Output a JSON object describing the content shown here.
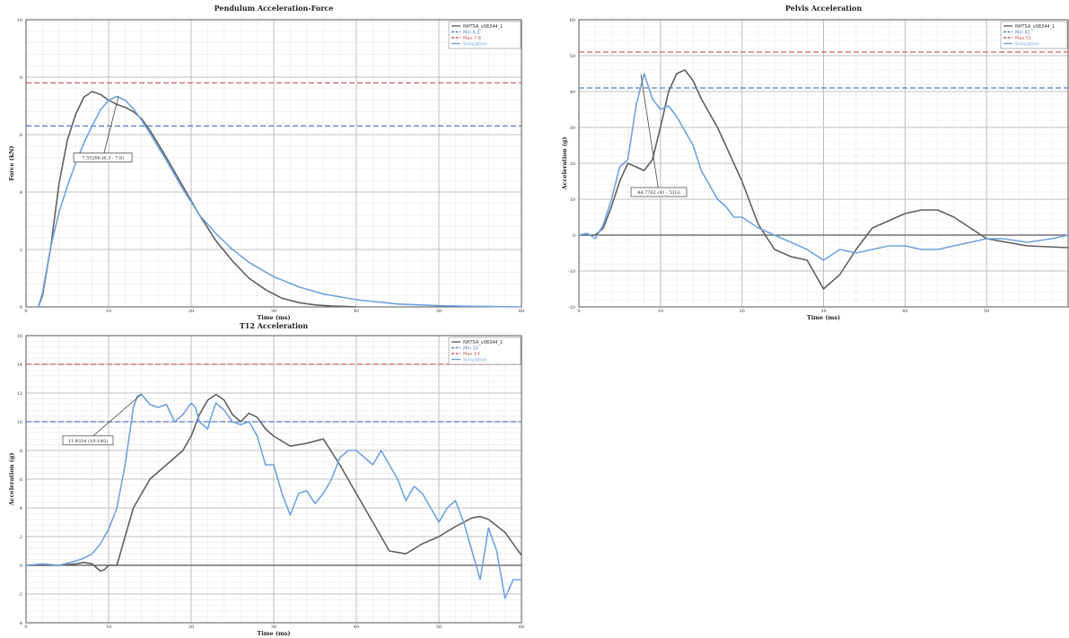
{
  "colors": {
    "nhtsa": "#606060",
    "min": "#4f7fc0",
    "max": "#d06060",
    "sim": "#6fa3e0"
  },
  "chart_data": [
    {
      "type": "line",
      "title": "Pendulum Acceleration-Force",
      "xlabel": "Time (ms)",
      "ylabel": "Force (kN)",
      "xlim": [
        0,
        60
      ],
      "ylim": [
        0,
        10
      ],
      "xticks": [
        0,
        10,
        20,
        30,
        40,
        50,
        60
      ],
      "yticks": [
        0,
        2,
        4,
        6,
        8,
        10
      ],
      "x_tick_labels": [
        "0",
        "10",
        "20",
        "30",
        "40",
        "50",
        "60"
      ],
      "y_tick_labels": [
        "0",
        "2",
        "4",
        "6",
        "8",
        "10"
      ],
      "grid": true,
      "legend_position": "top-right",
      "annotation": {
        "text": "7.33266 (6.3 - 7.8)",
        "point": [
          11.2,
          7.33
        ],
        "anchor": [
          9.3,
          5.2
        ]
      },
      "series": [
        {
          "name": "NHTSA_v08344_1",
          "style": "solid",
          "x": [
            1.5,
            2,
            3,
            4,
            5,
            6,
            7,
            8,
            9,
            10,
            11,
            12,
            13,
            14,
            15,
            17,
            19,
            21,
            23,
            25,
            27,
            29,
            31,
            33,
            35,
            37,
            40
          ],
          "y": [
            0,
            0.4,
            2.1,
            4.3,
            5.8,
            6.7,
            7.3,
            7.5,
            7.4,
            7.2,
            7.05,
            6.95,
            6.8,
            6.55,
            6.15,
            5.2,
            4.2,
            3.2,
            2.3,
            1.6,
            1.0,
            0.6,
            0.3,
            0.15,
            0.07,
            0.03,
            0.0
          ]
        },
        {
          "name": "Min 6.3",
          "style": "dashed",
          "x": [
            0,
            60
          ],
          "y": [
            6.3,
            6.3
          ]
        },
        {
          "name": "Max 7.8",
          "style": "dashed",
          "x": [
            0,
            60
          ],
          "y": [
            7.8,
            7.8
          ]
        },
        {
          "name": "Simulation",
          "style": "solid",
          "x": [
            1.5,
            2,
            3,
            4,
            5,
            6,
            7,
            8,
            9,
            10,
            11,
            12,
            13,
            14,
            15,
            17,
            19,
            21,
            23,
            25,
            27,
            30,
            33,
            36,
            40,
            45,
            50,
            55,
            60
          ],
          "y": [
            0,
            0.5,
            2.1,
            3.3,
            4.2,
            5.0,
            5.7,
            6.3,
            6.85,
            7.2,
            7.33,
            7.2,
            6.9,
            6.5,
            6.05,
            5.1,
            4.1,
            3.2,
            2.55,
            2.0,
            1.55,
            1.05,
            0.7,
            0.45,
            0.25,
            0.1,
            0.04,
            0.02,
            0.0
          ]
        }
      ]
    },
    {
      "type": "line",
      "title": "Pelvis Acceleration",
      "xlabel": "Time (ms)",
      "ylabel": "Acceleration (g)",
      "xlim": [
        0,
        60
      ],
      "ylim": [
        -20,
        60
      ],
      "xticks": [
        0,
        10,
        20,
        30,
        40,
        50
      ],
      "yticks": [
        -20,
        -10,
        0,
        10,
        20,
        30,
        40,
        50,
        60
      ],
      "x_tick_labels": [
        "0",
        "10",
        "20",
        "30",
        "40",
        "50"
      ],
      "y_tick_labels": [
        "-20",
        "-10",
        "0",
        "10",
        "20",
        "30",
        "40",
        "50",
        "60"
      ],
      "grid": true,
      "legend_position": "top-right",
      "annotation": {
        "text": "44.7762 (41 - 51G)",
        "point": [
          7.6,
          44.8
        ],
        "anchor": [
          9.8,
          12
        ]
      },
      "series": [
        {
          "name": "NHTSA_v08344_1",
          "style": "solid",
          "x": [
            0,
            2,
            3,
            4,
            5,
            6,
            7,
            8,
            9,
            10,
            11,
            12,
            13,
            14,
            15,
            16,
            17,
            18,
            20,
            22,
            24,
            26,
            28,
            30,
            32,
            34,
            36,
            38,
            40,
            42,
            44,
            46,
            48,
            50,
            55,
            60
          ],
          "y": [
            0,
            0,
            2,
            8,
            15,
            20,
            19,
            18,
            21,
            30,
            40,
            45,
            46,
            43,
            38,
            34,
            30,
            25,
            15,
            3,
            -4,
            -6,
            -7,
            -15,
            -11,
            -4,
            2,
            4,
            6,
            7,
            7,
            5,
            2,
            -1,
            -3,
            -3.5
          ]
        },
        {
          "name": "Min 41",
          "style": "dashed",
          "x": [
            0,
            60
          ],
          "y": [
            41,
            41
          ]
        },
        {
          "name": "Max 51",
          "style": "dashed",
          "x": [
            0,
            60
          ],
          "y": [
            51,
            51
          ]
        },
        {
          "name": "Simulation",
          "style": "solid",
          "x": [
            0,
            1,
            2,
            3,
            4,
            5,
            6,
            7,
            8,
            9,
            10,
            11,
            12,
            13,
            14,
            15,
            16,
            17,
            18,
            19,
            20,
            22,
            24,
            26,
            28,
            30,
            32,
            34,
            36,
            38,
            40,
            42,
            44,
            46,
            48,
            50,
            52,
            55,
            58,
            60
          ],
          "y": [
            0,
            0.5,
            -1,
            3,
            10,
            19,
            21,
            36,
            45,
            38,
            35,
            36,
            33,
            29,
            25,
            18,
            14,
            10,
            8,
            5,
            5,
            2,
            0,
            -2,
            -4,
            -7,
            -4,
            -5,
            -4,
            -3,
            -3,
            -4,
            -4,
            -3,
            -2,
            -1,
            -1,
            -2,
            -1,
            0
          ]
        }
      ]
    },
    {
      "type": "line",
      "title": "T12 Acceleration",
      "xlabel": "Time (ms)",
      "ylabel": "Acceleration (g)",
      "xlim": [
        0,
        60
      ],
      "ylim": [
        -4,
        16
      ],
      "xticks": [
        0,
        10,
        20,
        30,
        40,
        50,
        60
      ],
      "yticks": [
        -4,
        -2,
        0,
        2,
        4,
        6,
        8,
        10,
        12,
        14,
        16
      ],
      "x_tick_labels": [
        "0",
        "10",
        "20",
        "30",
        "40",
        "50",
        "60"
      ],
      "y_tick_labels": [
        "-4",
        "-2",
        "0",
        "2",
        "4",
        "6",
        "8",
        "10",
        "12",
        "14",
        "16"
      ],
      "grid": true,
      "legend_position": "top-right",
      "annotation": {
        "text": "11.9334 (10-14G)",
        "point": [
          14,
          11.93
        ],
        "anchor": [
          7.5,
          8.7
        ]
      },
      "series": [
        {
          "name": "NHTSA_v08344_1",
          "style": "solid",
          "x": [
            0,
            2,
            4,
            6,
            7,
            8,
            9,
            9.5,
            10,
            11,
            12,
            13,
            14,
            15,
            16,
            17,
            18,
            19,
            20,
            21,
            22,
            23,
            24,
            25,
            26,
            27,
            28,
            29,
            30,
            32,
            34,
            36,
            38,
            40,
            42,
            44,
            46,
            48,
            50,
            52,
            54,
            55,
            56,
            58,
            60
          ],
          "y": [
            0,
            0,
            0,
            0.1,
            0.2,
            0.1,
            -0.4,
            -0.3,
            0,
            0,
            2,
            4,
            5,
            6,
            6.5,
            7,
            7.5,
            8,
            9,
            10.5,
            11.5,
            11.9,
            11.5,
            10.5,
            10,
            10.6,
            10.3,
            9.5,
            9,
            8.3,
            8.5,
            8.8,
            7,
            5,
            3,
            1,
            0.8,
            1.5,
            2,
            2.7,
            3.3,
            3.4,
            3.2,
            2.3,
            0.7
          ]
        },
        {
          "name": "Min 10",
          "style": "dashed",
          "x": [
            0,
            60
          ],
          "y": [
            10,
            10
          ]
        },
        {
          "name": "Max 14",
          "style": "dashed",
          "x": [
            0,
            60
          ],
          "y": [
            14,
            14
          ]
        },
        {
          "name": "Simulation",
          "style": "solid",
          "x": [
            0,
            2,
            4,
            6,
            7,
            8,
            9,
            10,
            11,
            12,
            13,
            13.5,
            14,
            15,
            16,
            17,
            18,
            19,
            20,
            20.5,
            21,
            22,
            22.5,
            23,
            24,
            25,
            26,
            27,
            28,
            29,
            30,
            31,
            32,
            33,
            34,
            35,
            36,
            37,
            38,
            39,
            40,
            41,
            42,
            43,
            44,
            45,
            46,
            47,
            48,
            49,
            50,
            51,
            52,
            53,
            54,
            55,
            56,
            57,
            58,
            59,
            60
          ],
          "y": [
            0,
            0.1,
            0,
            0.3,
            0.5,
            0.8,
            1.5,
            2.5,
            4,
            7,
            11,
            11.8,
            11.9,
            11.2,
            11,
            11.2,
            10,
            10.5,
            11.3,
            11,
            10,
            9.5,
            10.5,
            11.3,
            10.8,
            10,
            9.8,
            10,
            9,
            7,
            7,
            5,
            3.5,
            5,
            5.2,
            4.3,
            5,
            6,
            7.5,
            8,
            8,
            7.5,
            7,
            8,
            7,
            6,
            4.5,
            5.5,
            5,
            4,
            3,
            4,
            4.5,
            3,
            1,
            -1,
            2.6,
            1,
            -2.3,
            -1,
            -1
          ]
        }
      ]
    }
  ]
}
